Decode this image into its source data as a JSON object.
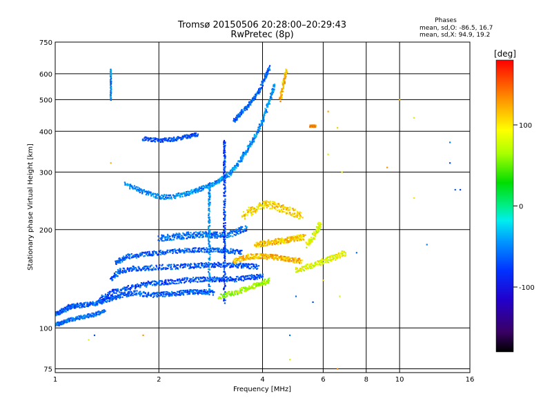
{
  "chart_data": {
    "type": "scatter",
    "title": "Tromsø 20150506 20:28:00–20:29:43",
    "subtitle": "RwPretec (8p)",
    "xlabel": "Frequency [MHz]",
    "ylabel": "Stationary phase Virtual Height [km]",
    "x_scale": "log2",
    "y_scale": "log",
    "xlim": [
      1,
      16
    ],
    "ylim": [
      73,
      750
    ],
    "x_ticks": [
      1,
      2,
      4,
      6,
      8,
      10,
      16
    ],
    "x_tick_labels": [
      "1",
      "2",
      "4",
      "6",
      "8",
      "10",
      "16"
    ],
    "y_ticks": [
      75,
      100,
      200,
      300,
      400,
      500,
      600,
      750
    ],
    "y_tick_labels": [
      "75",
      "100",
      "200",
      "300",
      "400",
      "500",
      "600",
      "750"
    ],
    "grid": true,
    "info": {
      "heading": "Phases",
      "line_o": "mean, sd,O: -86.5, 16.7",
      "line_x": "mean, sd,X:  94.9, 19.2"
    },
    "colorbar": {
      "label": "[deg]",
      "range": [
        -180,
        180
      ],
      "ticks": [
        100,
        0,
        -100
      ],
      "tick_labels": [
        "100",
        "0",
        "-100"
      ]
    },
    "traces": [
      {
        "points": [
          [
            1.0,
            110
          ],
          [
            1.05,
            113
          ],
          [
            1.1,
            116
          ],
          [
            1.15,
            117
          ],
          [
            1.25,
            118
          ],
          [
            1.35,
            120
          ],
          [
            1.45,
            123
          ],
          [
            1.55,
            126
          ],
          [
            1.7,
            128
          ],
          [
            1.9,
            126
          ],
          [
            2.1,
            127
          ],
          [
            2.3,
            128
          ],
          [
            2.5,
            129
          ],
          [
            2.7,
            129
          ],
          [
            2.9,
            128
          ]
        ],
        "phase": -110,
        "spread": 0.015
      },
      {
        "points": [
          [
            1.0,
            102
          ],
          [
            1.05,
            104
          ],
          [
            1.1,
            106
          ],
          [
            1.2,
            108
          ],
          [
            1.3,
            110
          ],
          [
            1.4,
            113
          ]
        ],
        "phase": -105,
        "spread": 0.012
      },
      {
        "points": [
          [
            1.35,
            123
          ],
          [
            1.5,
            130
          ],
          [
            1.7,
            134
          ],
          [
            1.9,
            137
          ],
          [
            2.1,
            138
          ],
          [
            2.4,
            140
          ],
          [
            2.7,
            141
          ],
          [
            3.0,
            141
          ],
          [
            3.3,
            141
          ],
          [
            3.7,
            143
          ],
          [
            4.0,
            144
          ]
        ],
        "phase": -115,
        "spread": 0.016
      },
      {
        "points": [
          [
            1.45,
            141
          ],
          [
            1.55,
            150
          ],
          [
            1.7,
            152
          ],
          [
            1.9,
            153
          ],
          [
            2.2,
            154
          ],
          [
            2.5,
            155
          ],
          [
            2.8,
            156
          ],
          [
            3.1,
            156
          ],
          [
            3.5,
            155
          ],
          [
            3.9,
            154
          ]
        ],
        "phase": -112,
        "spread": 0.016
      },
      {
        "points": [
          [
            1.5,
            158
          ],
          [
            1.6,
            165
          ],
          [
            1.8,
            168
          ],
          [
            2.0,
            170
          ],
          [
            2.3,
            172
          ],
          [
            2.6,
            173
          ],
          [
            2.9,
            173
          ],
          [
            3.2,
            172
          ],
          [
            3.5,
            170
          ]
        ],
        "phase": -110,
        "spread": 0.015
      },
      {
        "points": [
          [
            2.0,
            188
          ],
          [
            2.2,
            190
          ],
          [
            2.4,
            192
          ],
          [
            2.6,
            193
          ],
          [
            2.8,
            193
          ],
          [
            3.0,
            192
          ],
          [
            3.3,
            195
          ],
          [
            3.6,
            203
          ]
        ],
        "phase": -105,
        "spread": 0.02
      },
      {
        "points": [
          [
            1.6,
            275
          ],
          [
            1.8,
            262
          ],
          [
            2.0,
            252
          ],
          [
            2.2,
            252
          ],
          [
            2.4,
            258
          ],
          [
            2.6,
            265
          ],
          [
            2.8,
            272
          ],
          [
            3.0,
            282
          ],
          [
            3.2,
            296
          ],
          [
            3.4,
            320
          ],
          [
            3.6,
            350
          ],
          [
            3.8,
            385
          ],
          [
            4.0,
            430
          ],
          [
            4.2,
            500
          ],
          [
            4.35,
            560
          ]
        ],
        "phase": -95,
        "spread": 0.014
      },
      {
        "points": [
          [
            1.8,
            380
          ],
          [
            2.0,
            375
          ],
          [
            2.2,
            378
          ],
          [
            2.4,
            385
          ],
          [
            2.6,
            392
          ]
        ],
        "phase": -115,
        "spread": 0.012
      },
      {
        "points": [
          [
            3.3,
            430
          ],
          [
            3.5,
            460
          ],
          [
            3.7,
            490
          ],
          [
            3.9,
            530
          ],
          [
            4.05,
            580
          ],
          [
            4.2,
            630
          ]
        ],
        "phase": -108,
        "spread": 0.012
      },
      {
        "points": [
          [
            3.1,
            120
          ],
          [
            3.1,
            160
          ],
          [
            3.1,
            200
          ],
          [
            3.1,
            260
          ],
          [
            3.1,
            320
          ],
          [
            3.1,
            380
          ]
        ],
        "phase": -120,
        "spread": 0.012
      },
      {
        "points": [
          [
            2.8,
            130
          ],
          [
            2.8,
            180
          ],
          [
            2.8,
            230
          ],
          [
            2.8,
            280
          ]
        ],
        "phase": -95,
        "spread": 0.012
      },
      {
        "points": [
          [
            3.0,
            125
          ],
          [
            3.3,
            128
          ],
          [
            3.6,
            132
          ],
          [
            3.9,
            136
          ],
          [
            4.2,
            140
          ]
        ],
        "phase": 70,
        "spread": 0.016
      },
      {
        "points": [
          [
            3.3,
            160
          ],
          [
            3.6,
            165
          ],
          [
            3.9,
            166
          ],
          [
            4.2,
            165
          ],
          [
            4.5,
            164
          ],
          [
            4.8,
            162
          ],
          [
            5.2,
            160
          ]
        ],
        "phase": 120,
        "spread": 0.016
      },
      {
        "points": [
          [
            3.8,
            180
          ],
          [
            4.1,
            182
          ],
          [
            4.4,
            184
          ],
          [
            4.7,
            186
          ],
          [
            5.0,
            188
          ],
          [
            5.3,
            190
          ]
        ],
        "phase": 115,
        "spread": 0.018
      },
      {
        "points": [
          [
            5.0,
            150
          ],
          [
            5.5,
            155
          ],
          [
            6.0,
            160
          ],
          [
            6.5,
            165
          ],
          [
            7.0,
            170
          ]
        ],
        "phase": 95,
        "spread": 0.018
      },
      {
        "points": [
          [
            5.4,
            180
          ],
          [
            5.7,
            195
          ],
          [
            5.9,
            210
          ]
        ],
        "phase": 90,
        "spread": 0.02
      },
      {
        "points": [
          [
            4.5,
            500
          ],
          [
            4.6,
            560
          ],
          [
            4.7,
            620
          ]
        ],
        "phase": 120,
        "spread": 0.014
      },
      {
        "points": [
          [
            3.5,
            220
          ],
          [
            3.8,
            232
          ],
          [
            4.1,
            240
          ],
          [
            4.4,
            235
          ],
          [
            4.8,
            228
          ],
          [
            5.2,
            220
          ]
        ],
        "phase": 110,
        "spread": 0.025
      },
      {
        "points": [
          [
            1.45,
            500
          ],
          [
            1.45,
            560
          ],
          [
            1.45,
            620
          ]
        ],
        "phase": -95,
        "spread": 0.006
      },
      {
        "points": [
          [
            5.5,
            415
          ],
          [
            5.6,
            415
          ],
          [
            5.7,
            415
          ]
        ],
        "phase": 140,
        "spread": 0.006
      }
    ],
    "outliers": [
      [
        10.0,
        500
      ],
      [
        11.0,
        440
      ],
      [
        6.2,
        460
      ],
      [
        6.6,
        410
      ],
      [
        6.2,
        340
      ],
      [
        6.8,
        300
      ],
      [
        9.2,
        310
      ],
      [
        14.0,
        370
      ],
      [
        14.0,
        320
      ],
      [
        14.5,
        265
      ],
      [
        11.0,
        250
      ],
      [
        7.5,
        170
      ],
      [
        12.0,
        180
      ],
      [
        1.8,
        95
      ],
      [
        1.3,
        95
      ],
      [
        1.25,
        92
      ],
      [
        4.8,
        95
      ],
      [
        4.8,
        80
      ],
      [
        6.6,
        75
      ],
      [
        6.0,
        140
      ],
      [
        6.7,
        125
      ],
      [
        5.6,
        120
      ],
      [
        5.0,
        125
      ],
      [
        1.45,
        320
      ],
      [
        15.0,
        265
      ]
    ]
  }
}
